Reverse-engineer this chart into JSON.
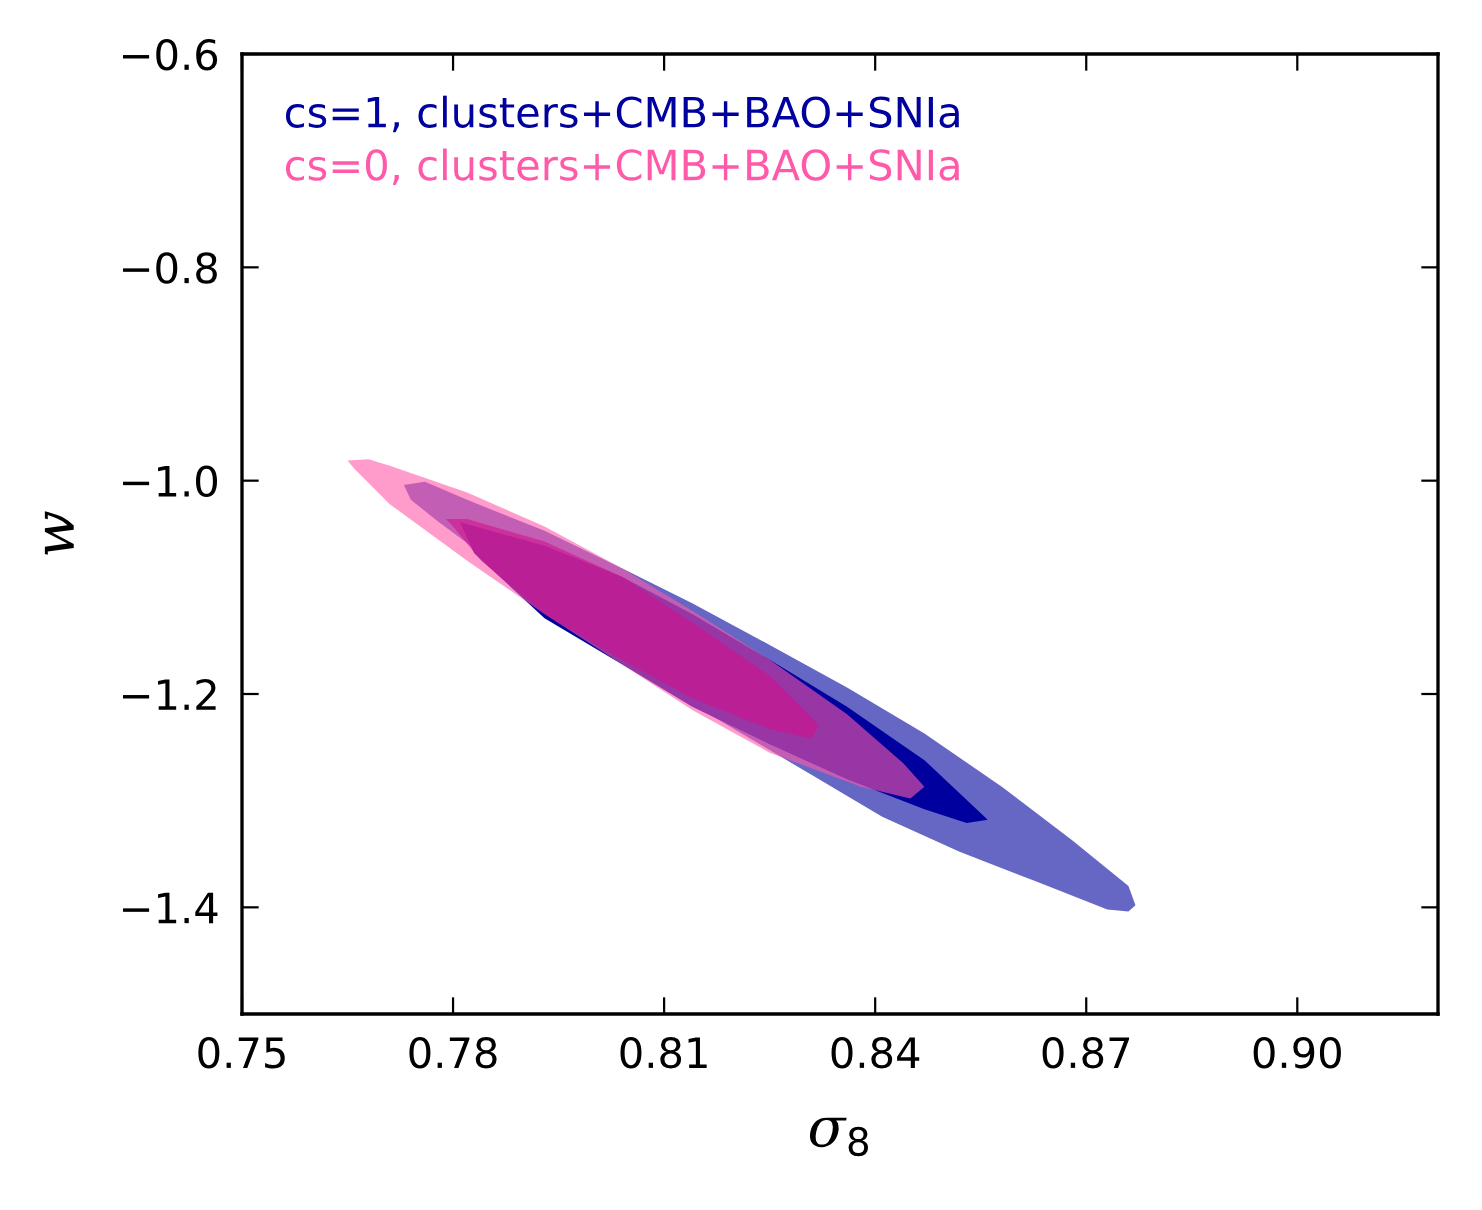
{
  "chart_data": {
    "type": "area",
    "xlabel": "σ$_{8}$",
    "ylabel": "w",
    "xlim": [
      0.75,
      0.92
    ],
    "ylim": [
      -1.5,
      -0.6
    ],
    "xticks": [
      0.75,
      0.78,
      0.81,
      0.84,
      0.87,
      {
        "value": 0.9,
        "label": "0.90"
      }
    ],
    "yticks": [
      {
        "value": -1.4,
        "label": "−1.4"
      },
      {
        "value": -1.2,
        "label": "−1.2"
      },
      {
        "value": -1.0,
        "label": "−1.0"
      },
      {
        "value": -0.8,
        "label": "−0.8"
      },
      {
        "value": -0.6,
        "label": "−0.6"
      }
    ],
    "grid": false,
    "legend": "top left",
    "series": [
      {
        "color": "#6666c4",
        "x": [
          0.773,
          0.776,
          0.782,
          0.793,
          0.804,
          0.814,
          0.825,
          0.836,
          0.847,
          0.858,
          0.868,
          0.876,
          0.877,
          0.876,
          0.873,
          0.863,
          0.852,
          0.841,
          0.831,
          0.82,
          0.809,
          0.778,
          0.774
        ],
        "values": [
          -1.004,
          -1.001,
          -1.018,
          -1.047,
          -1.082,
          -1.115,
          -1.154,
          -1.194,
          -1.237,
          -1.287,
          -1.337,
          -1.38,
          -1.398,
          -1.404,
          -1.402,
          -1.376,
          -1.348,
          -1.315,
          -1.276,
          -1.233,
          -1.19,
          -1.039,
          -1.018
        ]
      },
      {
        "name": "cs=1, clusters+CMB+BAO+SNIa",
        "color": "#00009e",
        "x": [
          0.781,
          0.793,
          0.804,
          0.814,
          0.825,
          0.836,
          0.847,
          0.856,
          0.853,
          0.847,
          0.836,
          0.825,
          0.814,
          0.804,
          0.793,
          0.783
        ],
        "values": [
          -1.039,
          -1.061,
          -1.09,
          -1.125,
          -1.168,
          -1.212,
          -1.262,
          -1.318,
          -1.321,
          -1.308,
          -1.28,
          -1.247,
          -1.212,
          -1.172,
          -1.129,
          -1.068
        ]
      },
      {
        "name": "cs=0, clusters+CMB+BAO+SNIa",
        "color": "#ff5aaa",
        "x": [
          0.765,
          0.768,
          0.771,
          0.782,
          0.793,
          0.804,
          0.814,
          0.825,
          0.836,
          0.844,
          0.847,
          0.845,
          0.838,
          0.825,
          0.814,
          0.804,
          0.793,
          0.782,
          0.771,
          0.766
        ],
        "values": [
          -0.981,
          -0.98,
          -0.986,
          -1.011,
          -1.043,
          -1.082,
          -1.122,
          -1.168,
          -1.219,
          -1.265,
          -1.287,
          -1.298,
          -1.287,
          -1.255,
          -1.215,
          -1.172,
          -1.125,
          -1.075,
          -1.022,
          -0.989
        ]
      },
      {
        "color": "#d0108c",
        "x": [
          0.779,
          0.782,
          0.793,
          0.804,
          0.814,
          0.825,
          0.832,
          0.831,
          0.825,
          0.814,
          0.804,
          0.793,
          0.784,
          0.78
        ],
        "values": [
          -1.036,
          -1.036,
          -1.057,
          -1.09,
          -1.133,
          -1.183,
          -1.229,
          -1.242,
          -1.233,
          -1.204,
          -1.168,
          -1.125,
          -1.075,
          -1.043
        ]
      }
    ]
  }
}
